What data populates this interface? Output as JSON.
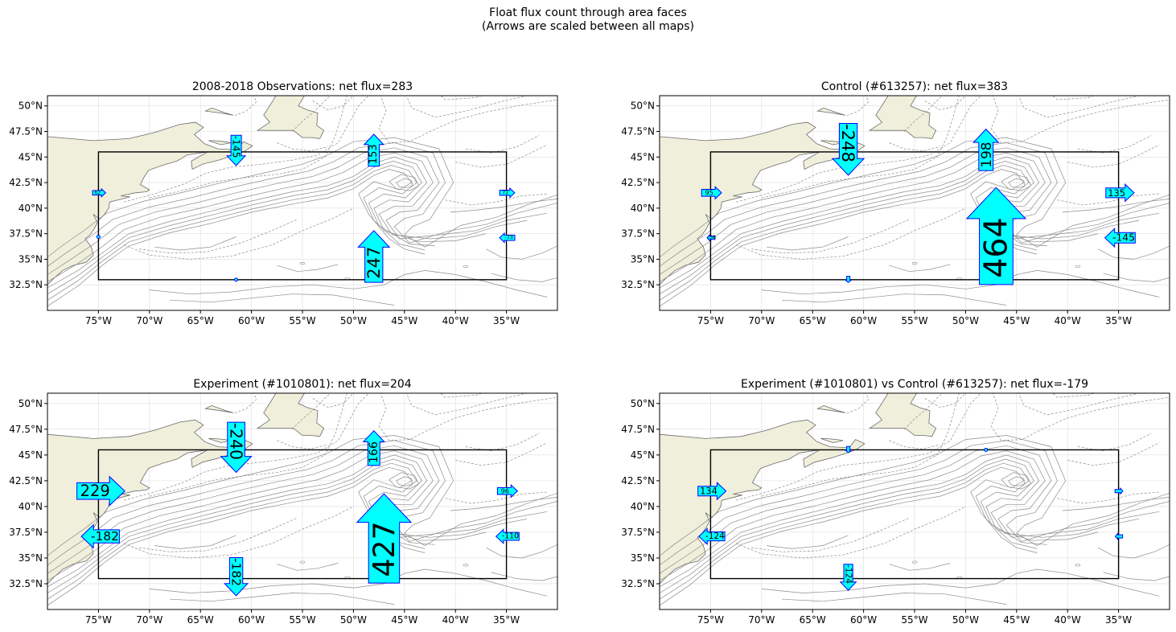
{
  "figure": {
    "suptitle_line1": "Float flux count through area faces",
    "suptitle_line2": "(Arrows are scaled between all maps)"
  },
  "map": {
    "lon_range": [
      -80,
      -30
    ],
    "lat_range": [
      30,
      51
    ],
    "box": {
      "west": -75,
      "east": -35,
      "south": 33,
      "north": 45.5
    },
    "lon_ticks": [
      -75,
      -70,
      -65,
      -60,
      -55,
      -50,
      -45,
      -40,
      -35
    ],
    "lon_tick_labels": [
      "75°W",
      "70°W",
      "65°W",
      "60°W",
      "55°W",
      "50°W",
      "45°W",
      "40°W",
      "35°W"
    ],
    "lat_ticks": [
      32.5,
      35,
      37.5,
      40,
      42.5,
      45,
      47.5,
      50
    ],
    "lat_tick_labels": [
      "32.5°N",
      "35°N",
      "37.5°N",
      "40°N",
      "42.5°N",
      "45°N",
      "47.5°N",
      "50°N"
    ],
    "colors": {
      "land": "#efefdb",
      "coast": "#6b6b6b",
      "contour": "#8c8c8c",
      "box": "#000000",
      "arrow_fill": "#00ffff",
      "arrow_edge": "#0000ff",
      "grid": "#dddddd"
    }
  },
  "panels": [
    {
      "title": "2008-2018 Observations: net flux=283",
      "arrows": [
        {
          "label": "-145",
          "value": -145,
          "lon": -61.5,
          "lat": 45.5,
          "dir": "down"
        },
        {
          "label": "153",
          "value": 153,
          "lon": -48,
          "lat": 45.5,
          "dir": "up"
        },
        {
          "label": "247",
          "value": 247,
          "lon": -48,
          "lat": 33,
          "dir": "up"
        },
        {
          "label": "62",
          "value": 62,
          "lon": -75,
          "lat": 41.5,
          "dir": "right"
        },
        {
          "label": "72",
          "value": 72,
          "lon": -35,
          "lat": 41.5,
          "dir": "right"
        },
        {
          "label": "-73",
          "value": -73,
          "lon": -35,
          "lat": 37.1,
          "dir": "left"
        },
        {
          "label": "",
          "value": 6,
          "lon": -75,
          "lat": 37.2,
          "dir": "dot"
        },
        {
          "label": "",
          "value": 6,
          "lon": -61.5,
          "lat": 33,
          "dir": "dot"
        }
      ]
    },
    {
      "title": "Control (#613257): net flux=383",
      "arrows": [
        {
          "label": "-248",
          "value": -248,
          "lon": -61.5,
          "lat": 45.5,
          "dir": "down"
        },
        {
          "label": "198",
          "value": 198,
          "lon": -48,
          "lat": 45.5,
          "dir": "up"
        },
        {
          "label": "464",
          "value": 464,
          "lon": -47,
          "lat": 33,
          "dir": "up"
        },
        {
          "label": "95",
          "value": 95,
          "lon": -75,
          "lat": 41.5,
          "dir": "right"
        },
        {
          "label": "135",
          "value": 135,
          "lon": -35,
          "lat": 41.5,
          "dir": "right"
        },
        {
          "label": "-145",
          "value": -145,
          "lon": -35,
          "lat": 37.1,
          "dir": "left"
        },
        {
          "label": "-38",
          "value": -38,
          "lon": -75,
          "lat": 37.1,
          "dir": "left"
        },
        {
          "label": "",
          "value": -30,
          "lon": -61.5,
          "lat": 33,
          "dir": "down"
        }
      ]
    },
    {
      "title": "Experiment (#1010801): net flux=204",
      "arrows": [
        {
          "label": "-240",
          "value": -240,
          "lon": -61.5,
          "lat": 45.5,
          "dir": "down"
        },
        {
          "label": "166",
          "value": 166,
          "lon": -48,
          "lat": 45.5,
          "dir": "up"
        },
        {
          "label": "427",
          "value": 427,
          "lon": -47,
          "lat": 33,
          "dir": "up"
        },
        {
          "label": "-182",
          "value": -182,
          "lon": -61.5,
          "lat": 33,
          "dir": "down"
        },
        {
          "label": "229",
          "value": 229,
          "lon": -75,
          "lat": 41.5,
          "dir": "right"
        },
        {
          "label": "-182",
          "value": -182,
          "lon": -75,
          "lat": 37.1,
          "dir": "left"
        },
        {
          "label": "96",
          "value": 96,
          "lon": -35,
          "lat": 41.5,
          "dir": "right"
        },
        {
          "label": "-110",
          "value": -110,
          "lon": -35,
          "lat": 37.1,
          "dir": "left"
        }
      ]
    },
    {
      "title": "Experiment (#1010801) vs Control (#613257): net flux=-179",
      "arrows": [
        {
          "label": "134",
          "value": 134,
          "lon": -75,
          "lat": 41.5,
          "dir": "right"
        },
        {
          "label": "-124",
          "value": -124,
          "lon": -75,
          "lat": 37.1,
          "dir": "left"
        },
        {
          "label": "-124",
          "value": -124,
          "lon": -61.5,
          "lat": 33,
          "dir": "down"
        },
        {
          "label": "",
          "value": -30,
          "lon": -61.5,
          "lat": 45.5,
          "dir": "down"
        },
        {
          "label": "",
          "value": 6,
          "lon": -48,
          "lat": 45.5,
          "dir": "dot"
        },
        {
          "label": "",
          "value": 38,
          "lon": -35,
          "lat": 41.5,
          "dir": "right"
        },
        {
          "label": "",
          "value": -35,
          "lon": -35,
          "lat": 37.1,
          "dir": "left"
        }
      ]
    }
  ]
}
